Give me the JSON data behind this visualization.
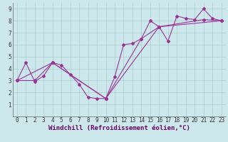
{
  "xlabel": "Windchill (Refroidissement éolien,°C)",
  "bg_color": "#cce8ec",
  "line_color": "#993399",
  "xlim": [
    -0.5,
    23.5
  ],
  "ylim": [
    0,
    9.5
  ],
  "xticks": [
    0,
    1,
    2,
    3,
    4,
    5,
    6,
    7,
    8,
    9,
    10,
    11,
    12,
    13,
    14,
    15,
    16,
    17,
    18,
    19,
    20,
    21,
    22,
    23
  ],
  "yticks": [
    1,
    2,
    3,
    4,
    5,
    6,
    7,
    8,
    9
  ],
  "series1_x": [
    0,
    1,
    2,
    3,
    4,
    5,
    6,
    7,
    8,
    9,
    10,
    11,
    12,
    13,
    14,
    15,
    16,
    17,
    18,
    19,
    20,
    21,
    22,
    23
  ],
  "series1_y": [
    3.0,
    4.5,
    2.9,
    3.4,
    4.5,
    4.3,
    3.5,
    2.7,
    1.6,
    1.5,
    1.5,
    3.3,
    6.0,
    6.1,
    6.5,
    8.0,
    7.5,
    6.3,
    8.4,
    8.2,
    8.1,
    9.0,
    8.2,
    8.0
  ],
  "series2_x": [
    0,
    2,
    4,
    10,
    14,
    16,
    21,
    23
  ],
  "series2_y": [
    3.0,
    3.0,
    4.5,
    1.5,
    6.5,
    7.5,
    8.1,
    8.0
  ],
  "series3_x": [
    0,
    4,
    10,
    16,
    23
  ],
  "series3_y": [
    3.0,
    4.5,
    1.5,
    7.5,
    8.0
  ],
  "grid_color": "#aacccc",
  "xlabel_fontsize": 6.5,
  "tick_fontsize": 5.5,
  "xlabel_color": "#660066"
}
